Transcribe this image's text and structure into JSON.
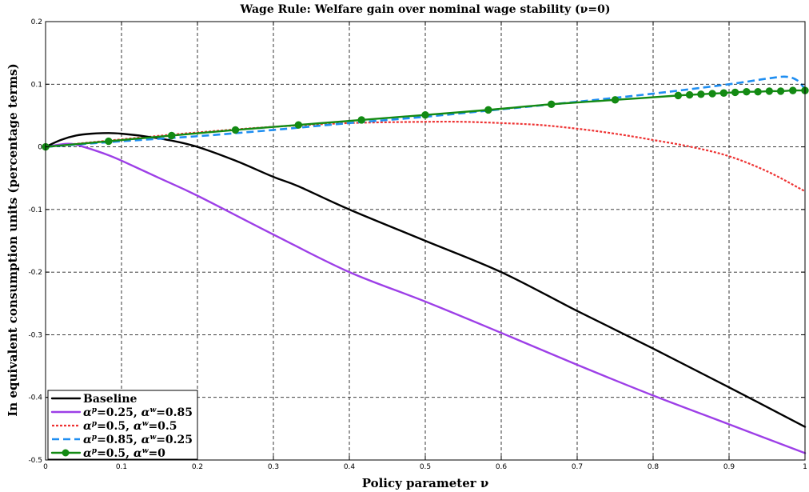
{
  "chart_data": {
    "type": "line",
    "title": "Wage Rule: Welfare gain over nominal wage stability (ν=0)",
    "xlabel": "Policy parameter ν",
    "ylabel": "In equivalent consumption units (percentage terms)",
    "xlim": [
      0,
      1
    ],
    "ylim": [
      -0.5,
      0.2
    ],
    "x_ticks": [
      "0",
      "0.1",
      "0.2",
      "0.3",
      "0.4",
      "0.5",
      "0.6",
      "0.7",
      "0.8",
      "0.9",
      "1"
    ],
    "y_ticks": [
      "0.2",
      "0.1",
      "0",
      "-0.1",
      "-0.2",
      "-0.3",
      "-0.4",
      "-0.5"
    ],
    "grid": true,
    "legend_position": "bottom-left",
    "series": [
      {
        "name": "Baseline",
        "color": "#000000",
        "style": "solid",
        "x": [
          0,
          0.02,
          0.04,
          0.06,
          0.083,
          0.1,
          0.13,
          0.166,
          0.2,
          0.25,
          0.3,
          0.333,
          0.4,
          0.5,
          0.6,
          0.7,
          0.8,
          0.9,
          1.0
        ],
        "y": [
          0,
          0.011,
          0.018,
          0.021,
          0.022,
          0.021,
          0.017,
          0.01,
          0.0,
          -0.022,
          -0.048,
          -0.063,
          -0.1,
          -0.15,
          -0.2,
          -0.262,
          -0.322,
          -0.384,
          -0.447
        ]
      },
      {
        "name": "αp=0.25, αw=0.85",
        "color": "#9d3fe7",
        "style": "solid",
        "x": [
          0,
          0.03,
          0.05,
          0.08,
          0.1,
          0.15,
          0.2,
          0.3,
          0.4,
          0.5,
          0.6,
          0.7,
          0.8,
          0.9,
          1.0
        ],
        "y": [
          0,
          0.005,
          0.0,
          -0.012,
          -0.022,
          -0.05,
          -0.078,
          -0.14,
          -0.2,
          -0.247,
          -0.297,
          -0.348,
          -0.397,
          -0.443,
          -0.489
        ]
      },
      {
        "name": "αp=0.5, αw=0.5",
        "color": "#ee3333",
        "style": "dotted",
        "x": [
          0,
          0.1,
          0.2,
          0.3,
          0.4,
          0.5,
          0.55,
          0.6,
          0.65,
          0.7,
          0.75,
          0.8,
          0.85,
          0.9,
          0.95,
          1.0
        ],
        "y": [
          0,
          0.012,
          0.023,
          0.032,
          0.038,
          0.04,
          0.04,
          0.038,
          0.035,
          0.029,
          0.021,
          0.011,
          0.0,
          -0.015,
          -0.039,
          -0.071
        ]
      },
      {
        "name": "αp=0.85, αw=0.25",
        "color": "#1f8ef1",
        "style": "dashed",
        "x": [
          0,
          0.1,
          0.2,
          0.3,
          0.4,
          0.5,
          0.6,
          0.7,
          0.8,
          0.9,
          0.95,
          0.975,
          0.99,
          1.0
        ],
        "y": [
          0,
          0.009,
          0.017,
          0.027,
          0.038,
          0.048,
          0.06,
          0.072,
          0.085,
          0.1,
          0.109,
          0.112,
          0.106,
          0.092
        ]
      },
      {
        "name": "αp=0.5, αw=0",
        "color": "#138a13",
        "style": "solid-marker",
        "x": [
          0,
          0.083,
          0.166,
          0.25,
          0.333,
          0.416,
          0.5,
          0.583,
          0.666,
          0.75,
          0.833,
          0.848,
          0.863,
          0.878,
          0.893,
          0.908,
          0.923,
          0.938,
          0.953,
          0.968,
          0.984,
          1.0
        ],
        "y": [
          0,
          0.009,
          0.018,
          0.027,
          0.035,
          0.043,
          0.051,
          0.059,
          0.068,
          0.075,
          0.082,
          0.083,
          0.084,
          0.085,
          0.086,
          0.087,
          0.088,
          0.088,
          0.089,
          0.089,
          0.09,
          0.09
        ]
      }
    ],
    "legend": [
      {
        "line": "Baseline",
        "color": "#000000",
        "style": "solid"
      },
      {
        "ap": "0.25",
        "aw": "0.85",
        "color": "#9d3fe7",
        "style": "solid"
      },
      {
        "ap": "0.5",
        "aw": "0.5",
        "color": "#ee3333",
        "style": "dotted"
      },
      {
        "ap": "0.85",
        "aw": "0.25",
        "color": "#1f8ef1",
        "style": "dashed"
      },
      {
        "ap": "0.5",
        "aw": "0",
        "color": "#138a13",
        "style": "solid-marker"
      }
    ]
  }
}
